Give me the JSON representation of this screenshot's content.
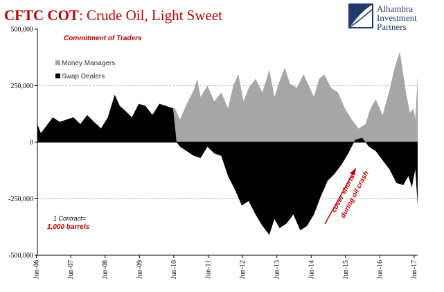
{
  "chart_data": {
    "type": "area",
    "title_bold": "CFTC COT",
    "title_rest": ": Crude Oil, Light Sweet",
    "subtitle": "Commitment of Traders",
    "brand": [
      "Alhambra",
      "Investment",
      "Partners"
    ],
    "ylim": [
      -500000,
      500000
    ],
    "yticks": [
      500000,
      250000,
      0,
      -250000,
      -500000
    ],
    "ytick_labels": [
      "500,000",
      "250,000",
      "0",
      "-250,000",
      "-500,000"
    ],
    "xlim": [
      2006.45,
      2017.52
    ],
    "xticks": [
      2006.42,
      2007.42,
      2008.42,
      2009.42,
      2010.42,
      2011.42,
      2012.42,
      2013.42,
      2014.42,
      2015.42,
      2016.42,
      2017.42
    ],
    "xtick_labels": [
      "Jun-06",
      "Jun-07",
      "Jun-08",
      "Jun-09",
      "Jun-10",
      "Jun-11",
      "Jun-12",
      "Jun-13",
      "Jun-14",
      "Jun-15",
      "Jun-16",
      "Jun-17"
    ],
    "gridlines": [
      250000,
      -250000
    ],
    "colors": {
      "money_managers": "#a6a6a6",
      "swap_dealers": "#000000",
      "title": "#c00000",
      "brand": "#1f3a6b"
    },
    "note_line1": "1 Contract=",
    "note_line2": "1,000 barrels",
    "annotation_line1": "cover shorts",
    "annotation_line2": "during oil crash",
    "series": [
      {
        "name": "Money Managers",
        "x": [
          2006.45,
          2006.7,
          2007.0,
          2007.3,
          2007.6,
          2007.9,
          2008.2,
          2008.5,
          2008.8,
          2009.0,
          2009.3,
          2009.6,
          2009.9,
          2010.2,
          2010.45,
          2010.6,
          2010.8,
          2011.0,
          2011.1,
          2011.2,
          2011.4,
          2011.6,
          2011.8,
          2012.0,
          2012.15,
          2012.3,
          2012.45,
          2012.6,
          2012.8,
          2013.0,
          2013.2,
          2013.35,
          2013.5,
          2013.65,
          2013.8,
          2014.0,
          2014.2,
          2014.35,
          2014.5,
          2014.65,
          2014.8,
          2015.0,
          2015.2,
          2015.4,
          2015.6,
          2015.8,
          2016.0,
          2016.15,
          2016.3,
          2016.5,
          2016.7,
          2016.85,
          2017.0,
          2017.1,
          2017.2,
          2017.3,
          2017.4,
          2017.45,
          2017.52
        ],
        "values": [
          20000,
          40000,
          60000,
          70000,
          90000,
          60000,
          80000,
          30000,
          70000,
          100000,
          110000,
          120000,
          130000,
          150000,
          150000,
          100000,
          170000,
          230000,
          280000,
          200000,
          250000,
          180000,
          220000,
          150000,
          250000,
          300000,
          180000,
          240000,
          280000,
          220000,
          320000,
          200000,
          270000,
          330000,
          260000,
          240000,
          300000,
          250000,
          200000,
          280000,
          300000,
          240000,
          220000,
          150000,
          100000,
          60000,
          80000,
          150000,
          190000,
          120000,
          230000,
          330000,
          400000,
          300000,
          200000,
          130000,
          150000,
          100000,
          290000
        ]
      },
      {
        "name": "Swap Dealers",
        "x": [
          2006.45,
          2006.55,
          2006.7,
          2006.9,
          2007.1,
          2007.3,
          2007.5,
          2007.7,
          2007.9,
          2008.1,
          2008.3,
          2008.5,
          2008.7,
          2008.85,
          2009.0,
          2009.2,
          2009.4,
          2009.6,
          2009.8,
          2010.0,
          2010.2,
          2010.4,
          2010.5,
          2010.6,
          2010.8,
          2011.0,
          2011.2,
          2011.4,
          2011.6,
          2011.8,
          2012.0,
          2012.2,
          2012.4,
          2012.6,
          2012.8,
          2013.0,
          2013.2,
          2013.35,
          2013.5,
          2013.7,
          2013.9,
          2014.1,
          2014.3,
          2014.5,
          2014.7,
          2014.9,
          2015.1,
          2015.3,
          2015.5,
          2015.7,
          2015.9,
          2016.1,
          2016.3,
          2016.5,
          2016.7,
          2016.9,
          2017.1,
          2017.25,
          2017.35,
          2017.45,
          2017.52
        ],
        "values": [
          80000,
          40000,
          70000,
          110000,
          90000,
          100000,
          110000,
          80000,
          120000,
          90000,
          60000,
          110000,
          210000,
          160000,
          140000,
          110000,
          170000,
          160000,
          120000,
          170000,
          160000,
          150000,
          0,
          -20000,
          -40000,
          -60000,
          -70000,
          -20000,
          -50000,
          -60000,
          -150000,
          -210000,
          -280000,
          -260000,
          -320000,
          -370000,
          -410000,
          -340000,
          -380000,
          -360000,
          -320000,
          -390000,
          -370000,
          -320000,
          -240000,
          -170000,
          -140000,
          -100000,
          -50000,
          10000,
          20000,
          -20000,
          -40000,
          -80000,
          -120000,
          -180000,
          -190000,
          -150000,
          -200000,
          -120000,
          -280000
        ]
      }
    ]
  }
}
